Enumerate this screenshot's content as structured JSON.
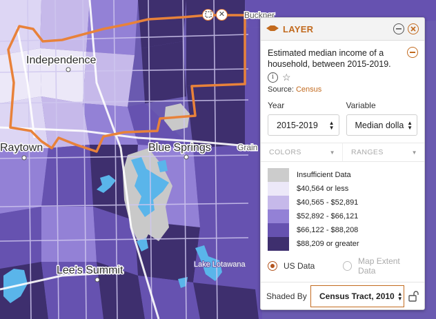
{
  "map": {
    "places": {
      "independence": "Independence",
      "raytown": "Raytown",
      "blue_springs": "Blue Springs",
      "grain_valley": "Grain",
      "lees_summit": "Lee's Summit",
      "lake_lotawana": "Lake Lotawana",
      "buckner": "Buckner"
    },
    "colors": {
      "water": "#5ab5ea",
      "boundary": "#e8823a",
      "roads": "#cfc7ef"
    },
    "controls": {
      "select_icon": "select-icon",
      "close_icon": "close-icon"
    }
  },
  "panel": {
    "title": "LAYER",
    "description": "Estimated median income of a household, between 2015-2019.",
    "source_label": "Source:",
    "source_link": "Census",
    "year": {
      "label": "Year",
      "value": "2015-2019"
    },
    "variable": {
      "label": "Variable",
      "value": "Median dolla"
    },
    "tabs": {
      "colors": "COLORS",
      "ranges": "RANGES"
    },
    "legend": [
      {
        "label": "Insufficient Data",
        "color": "#cccccc"
      },
      {
        "label": "$40,564 or less",
        "color": "#ece8f8"
      },
      {
        "label": "$40,565 - $52,891",
        "color": "#c6b9ea"
      },
      {
        "label": "$52,892 - $66,121",
        "color": "#9381d6"
      },
      {
        "label": "$66,122 - $88,208",
        "color": "#6652b0"
      },
      {
        "label": "$88,209 or greater",
        "color": "#3e2f6e"
      }
    ],
    "radio": {
      "us": "US Data",
      "extent": "Map Extent Data"
    },
    "shaded_by": {
      "label": "Shaded By",
      "value": "Census Tract, 2010"
    },
    "accent": "#c26a1e"
  }
}
